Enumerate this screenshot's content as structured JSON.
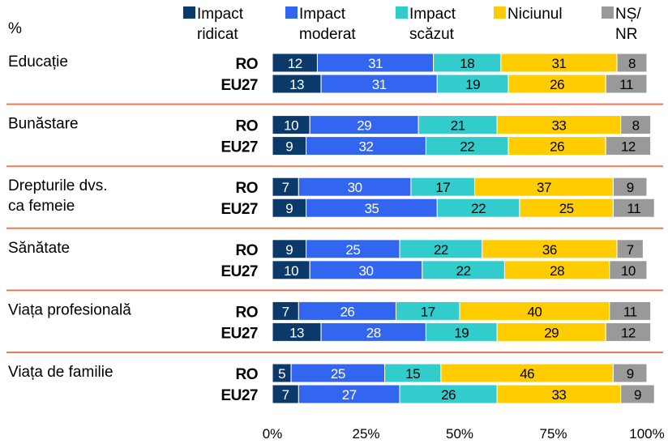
{
  "chart_data": {
    "type": "bar",
    "orientation": "horizontal",
    "stacked": true,
    "unit_label": "%",
    "legend_position": "top",
    "xlim": [
      0,
      100
    ],
    "x_ticks": [
      "0%",
      "25%",
      "50%",
      "75%",
      "100%"
    ],
    "series": [
      {
        "key": "high",
        "legend": [
          "Impact",
          "ridicat"
        ],
        "color": "#0b3a6a",
        "text_color": "#ffffff"
      },
      {
        "key": "moderate",
        "legend": [
          "Impact",
          "moderat"
        ],
        "color": "#3366f0",
        "text_color": "#ffffff"
      },
      {
        "key": "low",
        "legend": [
          "Impact",
          "scăzut"
        ],
        "color": "#33cccc",
        "text_color": "#000000"
      },
      {
        "key": "none",
        "legend": [
          "Niciunul"
        ],
        "color": "#ffcc00",
        "text_color": "#000000"
      },
      {
        "key": "dk",
        "legend": [
          "NȘ/",
          "NR"
        ],
        "color": "#999999",
        "text_color": "#000000"
      }
    ],
    "groups": [
      {
        "category": [
          "Educație"
        ],
        "rows": [
          {
            "label": "RO",
            "values": [
              12,
              31,
              18,
              31,
              8
            ]
          },
          {
            "label": "EU27",
            "values": [
              13,
              31,
              19,
              26,
              11
            ]
          }
        ]
      },
      {
        "category": [
          "Bunăstare"
        ],
        "rows": [
          {
            "label": "RO",
            "values": [
              10,
              29,
              21,
              33,
              8
            ]
          },
          {
            "label": "EU27",
            "values": [
              9,
              32,
              22,
              26,
              12
            ]
          }
        ]
      },
      {
        "category": [
          "Drepturile dvs.",
          "ca femeie"
        ],
        "rows": [
          {
            "label": "RO",
            "values": [
              7,
              30,
              17,
              37,
              9
            ]
          },
          {
            "label": "EU27",
            "values": [
              9,
              35,
              22,
              25,
              11
            ]
          }
        ]
      },
      {
        "category": [
          "Sănătate"
        ],
        "rows": [
          {
            "label": "RO",
            "values": [
              9,
              25,
              22,
              36,
              7
            ]
          },
          {
            "label": "EU27",
            "values": [
              10,
              30,
              22,
              28,
              10
            ]
          }
        ]
      },
      {
        "category": [
          "Viața profesională"
        ],
        "rows": [
          {
            "label": "RO",
            "values": [
              7,
              26,
              17,
              40,
              11
            ]
          },
          {
            "label": "EU27",
            "values": [
              13,
              28,
              19,
              29,
              12
            ]
          }
        ]
      },
      {
        "category": [
          "Viața de familie"
        ],
        "rows": [
          {
            "label": "RO",
            "values": [
              5,
              25,
              15,
              46,
              9
            ]
          },
          {
            "label": "EU27",
            "values": [
              7,
              27,
              26,
              33,
              9
            ]
          }
        ]
      }
    ]
  }
}
